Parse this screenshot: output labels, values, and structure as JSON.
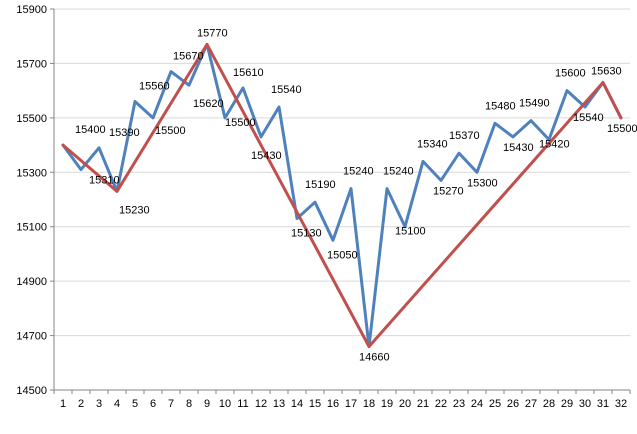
{
  "chart_data": {
    "type": "line",
    "title": "",
    "xlabel": "",
    "ylabel": "",
    "x": [
      1,
      2,
      3,
      4,
      5,
      6,
      7,
      8,
      9,
      10,
      11,
      12,
      13,
      14,
      15,
      16,
      17,
      18,
      19,
      20,
      21,
      22,
      23,
      24,
      25,
      26,
      27,
      28,
      29,
      30,
      31,
      32
    ],
    "ylim": [
      14500,
      15900
    ],
    "yticks": [
      14500,
      14700,
      14900,
      15100,
      15300,
      15500,
      15700,
      15900
    ],
    "grid": "horizontal",
    "legend": "none",
    "series": [
      {
        "color": "#4f81bd",
        "x": [
          1,
          2,
          3,
          4,
          5,
          6,
          7,
          8,
          9,
          10,
          11,
          12,
          13,
          14,
          15,
          16,
          17,
          18,
          19,
          20,
          21,
          22,
          23,
          24,
          25,
          26,
          27,
          28,
          29,
          30,
          31,
          32
        ],
        "values": [
          15400,
          15310,
          15390,
          15230,
          15560,
          15500,
          15670,
          15620,
          15770,
          15500,
          15610,
          15430,
          15540,
          15130,
          15190,
          15050,
          15240,
          14660,
          15240,
          15100,
          15340,
          15270,
          15370,
          15300,
          15480,
          15430,
          15490,
          15420,
          15600,
          15540,
          15630,
          15500
        ]
      },
      {
        "color": "#c0504d",
        "x": [
          1,
          4,
          9,
          18,
          31,
          32
        ],
        "values": [
          15400,
          15230,
          15770,
          14660,
          15630,
          15500
        ]
      }
    ],
    "data_labels": [
      {
        "x": 2,
        "text": "15400"
      },
      {
        "x": 3,
        "text": "15310"
      },
      {
        "x": 4,
        "text": "15390"
      },
      {
        "x": 5,
        "text": "15230"
      },
      {
        "x": 6,
        "text": "15560"
      },
      {
        "x": 7,
        "text": "15500"
      },
      {
        "x": 8,
        "text": "15670"
      },
      {
        "x": 9,
        "text": "15620"
      },
      {
        "x": 10,
        "text": "15770"
      },
      {
        "x": 11,
        "text": "15500"
      },
      {
        "x": 12,
        "text": "15610"
      },
      {
        "x": 13,
        "text": "15430"
      },
      {
        "x": 14,
        "text": "15540"
      },
      {
        "x": 15,
        "text": "15130"
      },
      {
        "x": 16,
        "text": "15190"
      },
      {
        "x": 17,
        "text": "15050"
      },
      {
        "x": 18,
        "text": "15240"
      },
      {
        "x": 19,
        "text": "14660"
      },
      {
        "x": 20,
        "text": "15240"
      },
      {
        "x": 21,
        "text": "15100"
      },
      {
        "x": 22,
        "text": "15340"
      },
      {
        "x": 23,
        "text": "15270"
      },
      {
        "x": 24,
        "text": "15370"
      },
      {
        "x": 25,
        "text": "15300"
      },
      {
        "x": 26,
        "text": "15480"
      },
      {
        "x": 27,
        "text": "15430"
      },
      {
        "x": 28,
        "text": "15490"
      },
      {
        "x": 29,
        "text": "15420"
      },
      {
        "x": 30,
        "text": "15600"
      },
      {
        "x": 31,
        "text": "15540"
      },
      {
        "x": 32,
        "text": "15630"
      },
      {
        "x": 33,
        "text": "15500"
      }
    ]
  }
}
